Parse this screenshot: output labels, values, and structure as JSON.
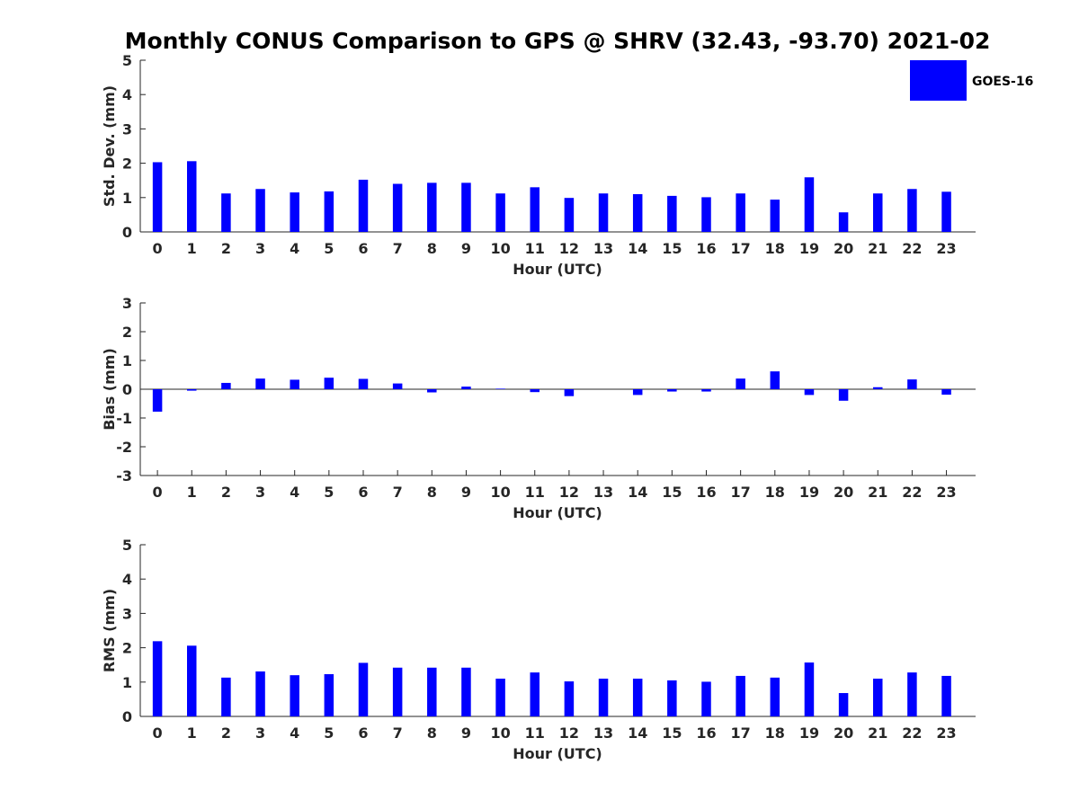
{
  "chart_data": [
    {
      "type": "bar",
      "title": "Monthly CONUS Comparison to GPS @ SHRV (32.43, -93.70) 2021-02",
      "xlabel": "Hour (UTC)",
      "ylabel": "Std. Dev. (mm)",
      "ylim": [
        0,
        5
      ],
      "yticks": [
        0,
        1,
        2,
        3,
        4,
        5
      ],
      "categories": [
        "0",
        "1",
        "2",
        "3",
        "4",
        "5",
        "6",
        "7",
        "8",
        "9",
        "10",
        "11",
        "12",
        "13",
        "14",
        "15",
        "16",
        "17",
        "18",
        "19",
        "20",
        "21",
        "22",
        "23"
      ],
      "series": [
        {
          "name": "GOES-16",
          "color": "#0000ff",
          "values": [
            2.03,
            2.06,
            1.12,
            1.25,
            1.15,
            1.18,
            1.52,
            1.4,
            1.43,
            1.43,
            1.12,
            1.3,
            0.99,
            1.12,
            1.1,
            1.05,
            1.01,
            1.12,
            0.94,
            1.59,
            0.57,
            1.12,
            1.25,
            1.17
          ]
        }
      ],
      "legend": {
        "position": "top-right",
        "entries": [
          "GOES-16"
        ]
      }
    },
    {
      "type": "bar",
      "xlabel": "Hour (UTC)",
      "ylabel": "Bias (mm)",
      "ylim": [
        -3,
        3
      ],
      "yticks": [
        -3,
        -2,
        -1,
        0,
        1,
        2,
        3
      ],
      "categories": [
        "0",
        "1",
        "2",
        "3",
        "4",
        "5",
        "6",
        "7",
        "8",
        "9",
        "10",
        "11",
        "12",
        "13",
        "14",
        "15",
        "16",
        "17",
        "18",
        "19",
        "20",
        "21",
        "22",
        "23"
      ],
      "baseline": 0,
      "series": [
        {
          "name": "GOES-16",
          "color": "#0000ff",
          "values": [
            -0.78,
            -0.05,
            0.22,
            0.37,
            0.33,
            0.4,
            0.36,
            0.2,
            -0.11,
            0.09,
            0.02,
            -0.1,
            -0.24,
            0.0,
            -0.2,
            -0.08,
            -0.08,
            0.37,
            0.62,
            -0.2,
            -0.4,
            0.07,
            0.34,
            -0.19
          ]
        }
      ]
    },
    {
      "type": "bar",
      "xlabel": "Hour (UTC)",
      "ylabel": "RMS (mm)",
      "ylim": [
        0,
        5
      ],
      "yticks": [
        0,
        1,
        2,
        3,
        4,
        5
      ],
      "categories": [
        "0",
        "1",
        "2",
        "3",
        "4",
        "5",
        "6",
        "7",
        "8",
        "9",
        "10",
        "11",
        "12",
        "13",
        "14",
        "15",
        "16",
        "17",
        "18",
        "19",
        "20",
        "21",
        "22",
        "23"
      ],
      "series": [
        {
          "name": "GOES-16",
          "color": "#0000ff",
          "values": [
            2.19,
            2.06,
            1.13,
            1.31,
            1.2,
            1.23,
            1.56,
            1.42,
            1.42,
            1.42,
            1.1,
            1.28,
            1.02,
            1.1,
            1.1,
            1.05,
            1.01,
            1.18,
            1.13,
            1.57,
            0.68,
            1.1,
            1.28,
            1.18
          ]
        }
      ]
    }
  ]
}
